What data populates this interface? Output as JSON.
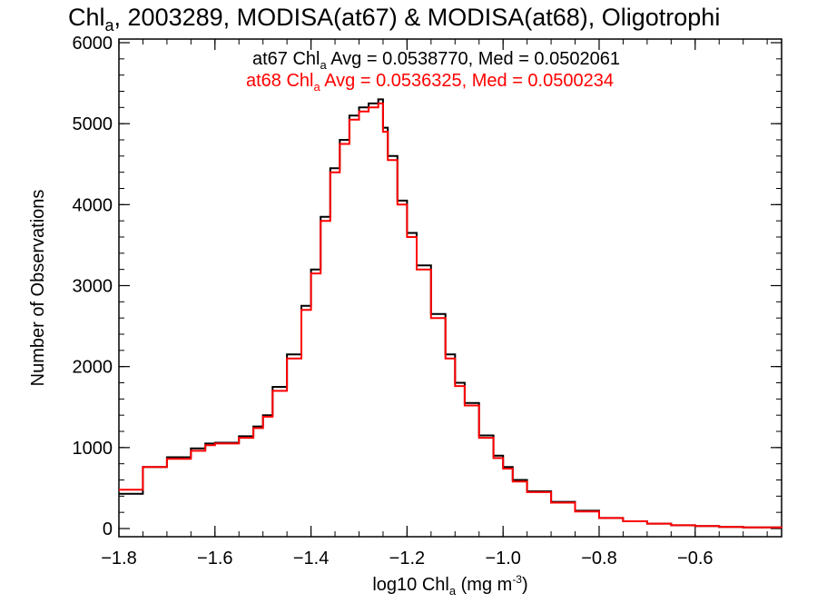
{
  "title_text": {
    "prefix": "Chl",
    "sub": "a",
    "rest": ", 2003289, MODISA(at67) & MODISA(at68), Oligotrophi"
  },
  "x_axis_label": {
    "prefix": "log10 Chl",
    "sub": "a",
    "middle": " (mg m",
    "sup": "-3",
    "suffix": ")"
  },
  "y_axis_label": "Number of Observations",
  "stats": [
    {
      "label_prefix": "at67 Chl",
      "label_sub": "a",
      "label_rest": " Avg = 0.0538770, Med = 0.0502061",
      "color": "#000000"
    },
    {
      "label_prefix": "at68 Chl",
      "label_sub": "a",
      "label_rest": " Avg = 0.0536325, Med = 0.0500234",
      "color": "#ff0000"
    }
  ],
  "chart_data": {
    "type": "line",
    "xlim": [
      -1.8,
      -0.42
    ],
    "ylim": [
      0,
      6000
    ],
    "x_ticks": [
      -1.8,
      -1.6,
      -1.4,
      -1.2,
      -1.0,
      -0.8,
      -0.6
    ],
    "x_tick_labels": [
      "−1.8",
      "−1.6",
      "−1.4",
      "−1.2",
      "−1.0",
      "−0.8",
      "−0.6"
    ],
    "y_ticks": [
      0,
      1000,
      2000,
      3000,
      4000,
      5000,
      6000
    ],
    "y_tick_labels": [
      "0",
      "1000",
      "2000",
      "3000",
      "4000",
      "5000",
      "6000"
    ],
    "x": [
      -1.8,
      -1.75,
      -1.7,
      -1.65,
      -1.62,
      -1.6,
      -1.55,
      -1.52,
      -1.5,
      -1.48,
      -1.45,
      -1.42,
      -1.4,
      -1.38,
      -1.36,
      -1.34,
      -1.32,
      -1.3,
      -1.28,
      -1.26,
      -1.25,
      -1.24,
      -1.22,
      -1.2,
      -1.18,
      -1.15,
      -1.12,
      -1.1,
      -1.08,
      -1.05,
      -1.02,
      -1.0,
      -0.98,
      -0.95,
      -0.9,
      -0.85,
      -0.8,
      -0.75,
      -0.7,
      -0.65,
      -0.6,
      -0.55,
      -0.5,
      -0.42
    ],
    "series": [
      {
        "name": "at67",
        "color": "#000000",
        "values": [
          430,
          760,
          880,
          990,
          1050,
          1060,
          1140,
          1260,
          1400,
          1750,
          2150,
          2750,
          3200,
          3850,
          4450,
          4800,
          5100,
          5200,
          5250,
          5300,
          4950,
          4600,
          4050,
          3650,
          3250,
          2650,
          2150,
          1800,
          1550,
          1150,
          900,
          760,
          600,
          460,
          330,
          220,
          130,
          90,
          60,
          40,
          30,
          20,
          15,
          10
        ]
      },
      {
        "name": "at68",
        "color": "#ff0000",
        "values": [
          480,
          760,
          860,
          960,
          1030,
          1050,
          1120,
          1240,
          1380,
          1700,
          2100,
          2700,
          3150,
          3800,
          4400,
          4750,
          5050,
          5150,
          5200,
          5250,
          4900,
          4550,
          4000,
          3600,
          3200,
          2600,
          2100,
          1760,
          1520,
          1120,
          870,
          740,
          580,
          450,
          320,
          210,
          130,
          90,
          60,
          40,
          30,
          20,
          15,
          10
        ]
      }
    ]
  }
}
